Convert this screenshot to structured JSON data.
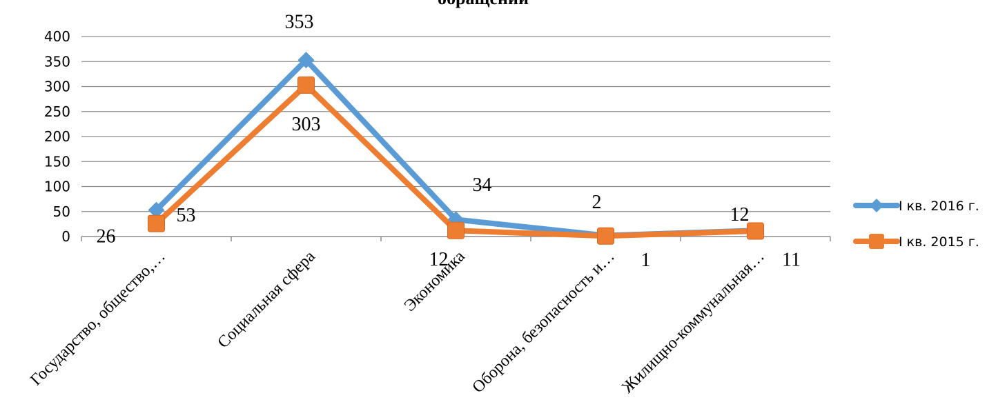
{
  "chart_data": {
    "type": "line",
    "title": "обращений",
    "categories": [
      "Государство, общество,…",
      "Социальная сфера",
      "Экономика",
      "Оборона, безопасность и…",
      "Жилищно-коммунальная…"
    ],
    "series": [
      {
        "name": "I кв. 2016 г.",
        "values": [
          53,
          353,
          34,
          2,
          12
        ],
        "color": "#5B9BD5",
        "marker": "diamond"
      },
      {
        "name": "I кв. 2015 г.",
        "values": [
          26,
          303,
          12,
          1,
          11
        ],
        "color": "#ED7D31",
        "marker": "square"
      }
    ],
    "ylim": [
      0,
      400
    ],
    "yticks": [
      0,
      50,
      100,
      150,
      200,
      250,
      300,
      350,
      400
    ],
    "grid": true,
    "legend": "right"
  }
}
